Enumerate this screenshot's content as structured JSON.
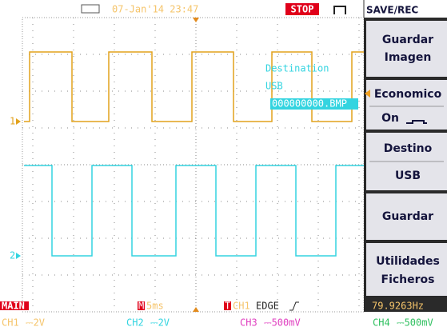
{
  "header": {
    "datetime": "07-Jan'14 23:47",
    "status": "STOP",
    "menu_title": "SAVE/REC"
  },
  "screen": {
    "overlay": {
      "label": "Destination",
      "device": "USB",
      "file": "000000000.BMP"
    },
    "channel_markers": [
      "1",
      "2"
    ]
  },
  "menu": {
    "items": [
      {
        "label": "Guardar Imagen"
      },
      {
        "label": "Economico",
        "value": "On"
      },
      {
        "label": "Destino",
        "value": "USB"
      },
      {
        "label": "Guardar"
      },
      {
        "label": "Utilidades Ficheros"
      }
    ]
  },
  "footer": {
    "mode": "MAIN",
    "timebase_marker": "M",
    "timebase": "5ms",
    "trigger_marker": "T",
    "trigger_source": "CH1",
    "trigger_type": "EDGE",
    "frequency": "79.9263Hz",
    "channels": [
      {
        "name": "CH1",
        "scale": "⎓2V"
      },
      {
        "name": "CH2",
        "scale": "⎓2V"
      },
      {
        "name": "CH3",
        "scale": "⎓500mV"
      },
      {
        "name": "CH4",
        "scale": "⎓500mV"
      }
    ]
  }
}
